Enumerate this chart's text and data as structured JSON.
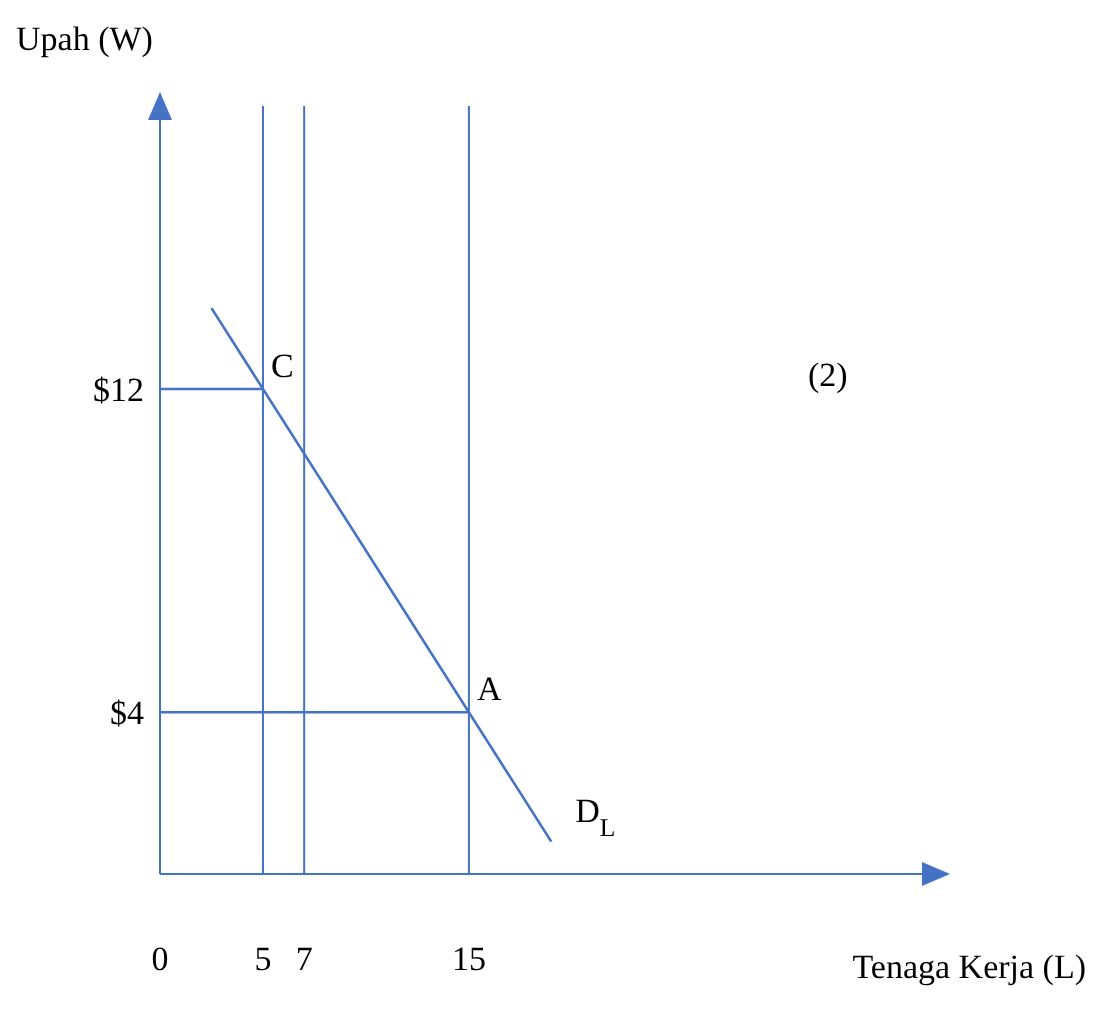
{
  "chart_data": {
    "type": "line",
    "xlabel": "Tenaga Kerja (L)",
    "ylabel": "Upah (W)",
    "xlim": [
      0,
      37
    ],
    "ylim": [
      0,
      19
    ],
    "xticks": [
      0,
      5,
      7,
      15
    ],
    "yticks": [
      {
        "value": 4,
        "label": "$4"
      },
      {
        "value": 12,
        "label": "$12"
      }
    ],
    "series": [
      {
        "name": "D$_{L}$",
        "color": "#4472c4",
        "x": [
          2.5,
          19
        ],
        "values": [
          14,
          0.8
        ]
      },
      {
        "color": "#4472c4",
        "x": [
          0,
          5
        ],
        "values": [
          12,
          12
        ]
      },
      {
        "color": "#4472c4",
        "x": [
          0,
          15
        ],
        "values": [
          4,
          4
        ]
      }
    ],
    "ref_lines": [
      {
        "axis": "x",
        "value": 5,
        "color": "#4472c4"
      },
      {
        "axis": "x",
        "value": 7,
        "color": "#4472c4"
      },
      {
        "axis": "x",
        "value": 15,
        "color": "#4472c4"
      }
    ],
    "annotations": [
      {
        "text": "C",
        "x": 5,
        "y": 12
      },
      {
        "text": "A",
        "x": 15,
        "y": 4
      },
      "(2)"
    ],
    "marker": "none",
    "line_style": "solid",
    "grid": false,
    "legend": false
  }
}
